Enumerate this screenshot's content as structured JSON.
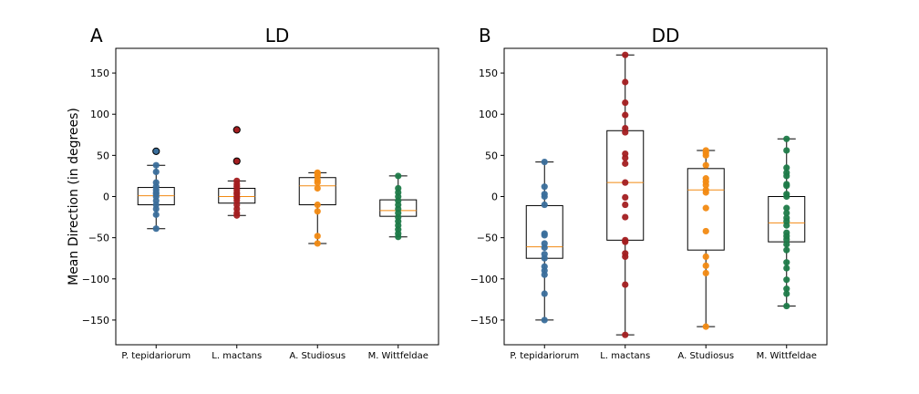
{
  "chart_data": [
    {
      "type": "box",
      "panel_label": "A",
      "title": "LD",
      "ylabel": "Mean Direction (in degrees)",
      "ylim": [
        -180,
        180
      ],
      "yticks": [
        -150,
        -100,
        -50,
        0,
        50,
        100,
        150
      ],
      "categories": [
        "P. tepidariorum",
        "L. mactans",
        "A. Studiosus",
        "M. Wittfeldae"
      ],
      "colors": [
        "#3a6e9b",
        "#a31e20",
        "#f28a12",
        "#1d7a48"
      ],
      "boxes": [
        {
          "whisker_low": -39,
          "q1": -10,
          "median": 1,
          "q3": 11,
          "whisker_high": 38,
          "outliers": [
            55
          ]
        },
        {
          "whisker_low": -23,
          "q1": -8,
          "median": 0,
          "q3": 10,
          "whisker_high": 19,
          "outliers": [
            43,
            81
          ]
        },
        {
          "whisker_low": -57,
          "q1": -10,
          "median": 13,
          "q3": 23,
          "whisker_high": 29,
          "outliers": []
        },
        {
          "whisker_low": -49,
          "q1": -24,
          "median": -17,
          "q3": -4,
          "whisker_high": 25,
          "outliers": []
        }
      ],
      "points": [
        [
          -39,
          -22,
          -15,
          -10,
          -5,
          0,
          3,
          5,
          8,
          12,
          17,
          30,
          38,
          55
        ],
        [
          -23,
          -20,
          -15,
          -10,
          -5,
          -2,
          0,
          3,
          5,
          8,
          12,
          15,
          19,
          43,
          81
        ],
        [
          -57,
          -48,
          -18,
          -10,
          10,
          17,
          20,
          25,
          28,
          29
        ],
        [
          -49,
          -45,
          -40,
          -35,
          -30,
          -25,
          -20,
          -15,
          -10,
          -5,
          0,
          5,
          10,
          25
        ]
      ]
    },
    {
      "type": "box",
      "panel_label": "B",
      "title": "DD",
      "ylim": [
        -180,
        180
      ],
      "yticks": [
        -150,
        -100,
        -50,
        0,
        50,
        100,
        150
      ],
      "categories": [
        "P. tepidariorum",
        "L. mactans",
        "A. Studiosus",
        "M. Wittfeldae"
      ],
      "colors": [
        "#3a6e9b",
        "#a31e20",
        "#f28a12",
        "#1d7a48"
      ],
      "boxes": [
        {
          "whisker_low": -150,
          "q1": -75,
          "median": -61,
          "q3": -11,
          "whisker_high": 42,
          "outliers": []
        },
        {
          "whisker_low": -168,
          "q1": -53,
          "median": 17,
          "q3": 80,
          "whisker_high": 172,
          "outliers": []
        },
        {
          "whisker_low": -158,
          "q1": -65,
          "median": 8,
          "q3": 34,
          "whisker_high": 56,
          "outliers": []
        },
        {
          "whisker_low": -133,
          "q1": -55,
          "median": -32,
          "q3": 0,
          "whisker_high": 70,
          "outliers": []
        }
      ],
      "points": [
        [
          -150,
          -118,
          -95,
          -90,
          -85,
          -75,
          -70,
          -62,
          -57,
          -47,
          -45,
          -10,
          0,
          3,
          12,
          42
        ],
        [
          -168,
          -107,
          -73,
          -69,
          -55,
          -53,
          -25,
          -10,
          -1,
          17,
          40,
          47,
          52,
          78,
          83,
          99,
          114,
          139,
          172
        ],
        [
          -158,
          -93,
          -84,
          -73,
          -42,
          -14,
          5,
          8,
          14,
          18,
          22,
          38,
          50,
          53,
          56
        ],
        [
          -133,
          -118,
          -112,
          -101,
          -87,
          -80,
          -65,
          -58,
          -52,
          -48,
          -44,
          -35,
          -30,
          -26,
          -20,
          -14,
          0,
          3,
          13,
          15,
          25,
          29,
          35,
          56,
          70
        ]
      ]
    }
  ]
}
